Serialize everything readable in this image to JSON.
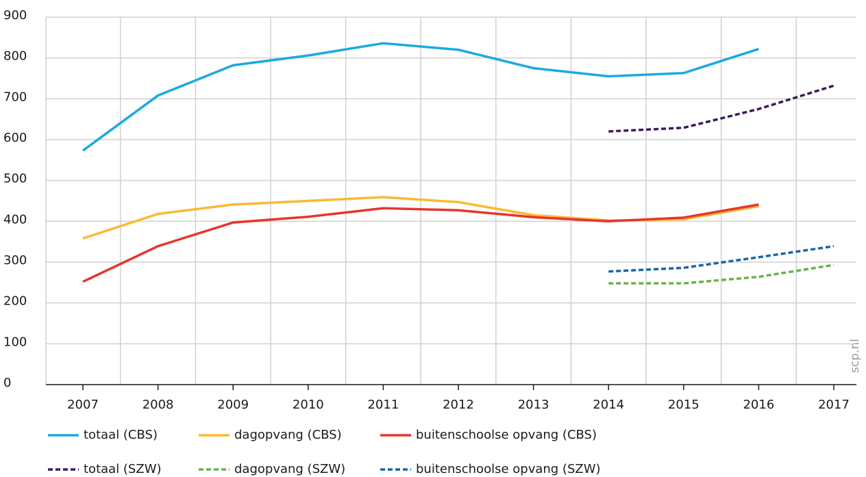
{
  "chart_data": {
    "type": "line",
    "x": [
      "2007",
      "2008",
      "2009",
      "2010",
      "2011",
      "2012",
      "2013",
      "2014",
      "2015",
      "2016",
      "2017"
    ],
    "series": [
      {
        "name": "totaal (CBS)",
        "color": "#1aa9e0",
        "dash": false,
        "values": [
          573,
          708,
          782,
          806,
          836,
          820,
          775,
          755,
          763,
          822,
          null
        ]
      },
      {
        "name": "dagopvang (CBS)",
        "color": "#fbb931",
        "dash": false,
        "values": [
          358,
          418,
          441,
          450,
          459,
          447,
          415,
          402,
          405,
          437,
          null
        ]
      },
      {
        "name": "buitenschoolse opvang (CBS)",
        "color": "#e8352b",
        "dash": false,
        "values": [
          252,
          339,
          397,
          411,
          432,
          427,
          410,
          400,
          409,
          441,
          null
        ]
      },
      {
        "name": "totaal (SZW)",
        "color": "#3a1a5e",
        "dash": true,
        "values": [
          null,
          null,
          null,
          null,
          null,
          null,
          null,
          620,
          629,
          675,
          732
        ]
      },
      {
        "name": "dagopvang (SZW)",
        "color": "#6ab04c",
        "dash": true,
        "values": [
          null,
          null,
          null,
          null,
          null,
          null,
          null,
          248,
          248,
          264,
          293
        ]
      },
      {
        "name": "buitenschoolse opvang (SZW)",
        "color": "#1565a8",
        "dash": true,
        "values": [
          null,
          null,
          null,
          null,
          null,
          null,
          null,
          277,
          286,
          312,
          339
        ]
      }
    ],
    "ylim": [
      0,
      900
    ],
    "yticks": [
      0,
      100,
      200,
      300,
      400,
      500,
      600,
      700,
      800,
      900
    ],
    "grid": true,
    "annotation": "scp.nl"
  }
}
